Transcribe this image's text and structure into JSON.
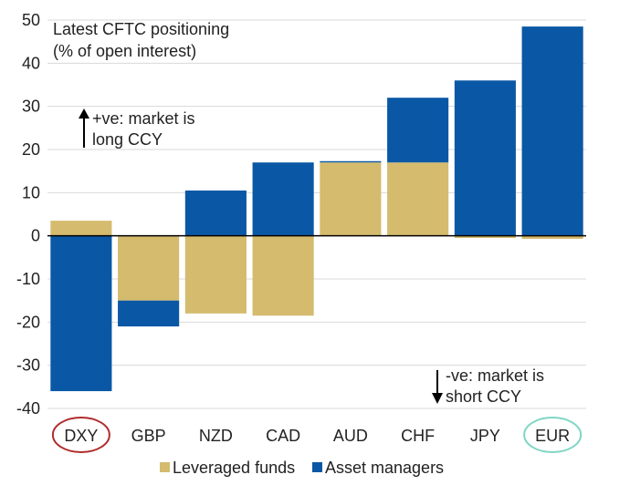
{
  "chart_data": {
    "type": "bar",
    "stacked": true,
    "title_lines": [
      "Latest CFTC positioning",
      "(% of open interest)"
    ],
    "categories": [
      "DXY",
      "GBP",
      "NZD",
      "CAD",
      "AUD",
      "CHF",
      "JPY",
      "EUR"
    ],
    "series": [
      {
        "name": "Leveraged funds",
        "color": "#d4bb6e",
        "values": [
          3.5,
          -15,
          -18,
          -18.5,
          17,
          17,
          -0.5,
          -0.7
        ]
      },
      {
        "name": "Asset managers",
        "color": "#0a58a5",
        "values": [
          -36,
          -6,
          10.5,
          17,
          0.3,
          15,
          36,
          48.5
        ]
      }
    ],
    "ylim": [
      -40,
      50
    ],
    "yticks": [
      50,
      40,
      30,
      20,
      10,
      0,
      -10,
      -20,
      -30,
      -40
    ],
    "grid": true,
    "legend_position": "bottom",
    "annotations": {
      "positive": [
        "+ve: market is",
        "long CCY"
      ],
      "negative": [
        "-ve: market is",
        "short CCY"
      ]
    },
    "highlighted_categories": [
      {
        "label": "DXY",
        "color": "#b02d2d"
      },
      {
        "label": "EUR",
        "color": "#7fd6c4"
      }
    ]
  }
}
